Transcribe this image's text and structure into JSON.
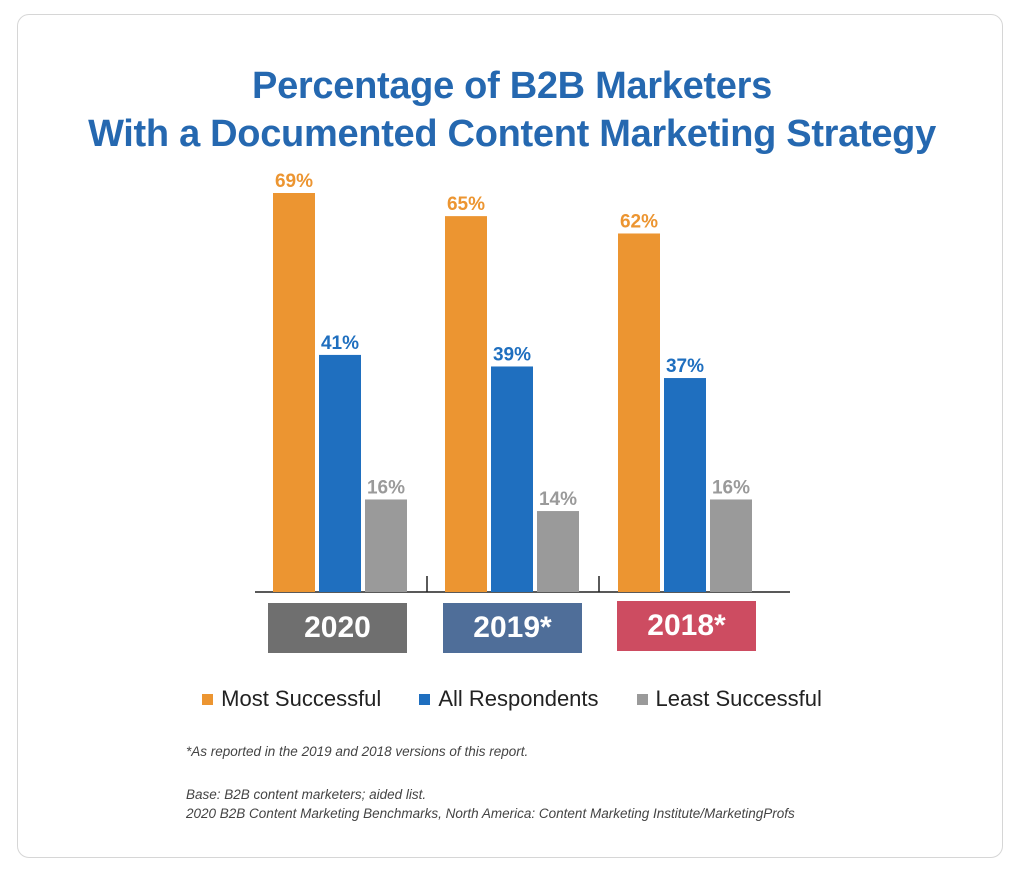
{
  "chart_data": {
    "type": "bar",
    "title": "Percentage of B2B Marketers",
    "subtitle": "With a Documented Content Marketing Strategy",
    "categories": [
      "2020",
      "2019*",
      "2018*"
    ],
    "category_colors": [
      "#6f6f6f",
      "#4f6e99",
      "#cd4c61"
    ],
    "series": [
      {
        "name": "Most Successful",
        "color": "#ec9531",
        "values": [
          69,
          65,
          62
        ],
        "labels": [
          "69%",
          "65%",
          "62%"
        ]
      },
      {
        "name": "All Respondents",
        "color": "#1f6fbf",
        "values": [
          41,
          39,
          37
        ],
        "labels": [
          "41%",
          "39%",
          "37%"
        ]
      },
      {
        "name": "Least Successful",
        "color": "#9a9a9a",
        "values": [
          16,
          14,
          16
        ],
        "labels": [
          "16%",
          "14%",
          "16%"
        ]
      }
    ],
    "ylim": [
      0,
      69
    ],
    "grid": false,
    "legend_position": "bottom"
  },
  "footnote": "*As reported in the 2019 and 2018 versions of this report.",
  "base_note": "Base: B2B content marketers; aided list.",
  "source_note": "2020 B2B Content Marketing Benchmarks, North America: Content Marketing Institute/MarketingProfs"
}
